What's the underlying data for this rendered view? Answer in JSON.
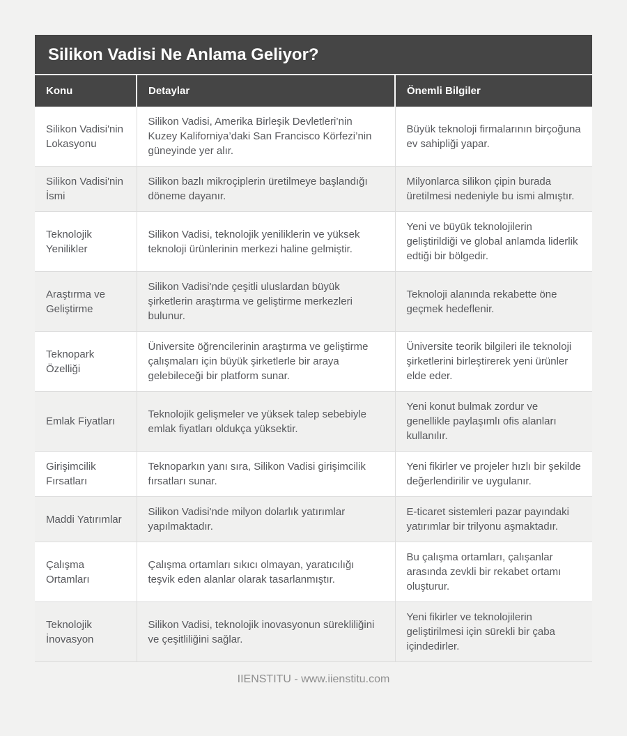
{
  "header": {
    "title": "Silikon Vadisi Ne Anlama Geliyor?"
  },
  "table": {
    "columns": [
      "Konu",
      "Detaylar",
      "Önemli Bilgiler"
    ],
    "rows": [
      {
        "konu": "Silikon Vadisi'nin Lokasyonu",
        "detaylar": "Silikon Vadisi, Amerika Birleşik Devletleri’nin Kuzey Kaliforniya’daki San Francisco Körfezi’nin güneyinde yer alır.",
        "onemli": "Büyük teknoloji firmalarının birçoğuna ev sahipliği yapar."
      },
      {
        "konu": "Silikon Vadisi'nin İsmi",
        "detaylar": "Silikon bazlı mikroçiplerin üretilmeye başlandığı döneme dayanır.",
        "onemli": "Milyonlarca silikon çipin burada üretilmesi nedeniyle bu ismi almıştır."
      },
      {
        "konu": "Teknolojik Yenilikler",
        "detaylar": "Silikon Vadisi, teknolojik yeniliklerin ve yüksek teknoloji ürünlerinin merkezi haline gelmiştir.",
        "onemli": "Yeni ve büyük teknolojilerin geliştirildiği ve global anlamda liderlik edtiği bir bölgedir."
      },
      {
        "konu": "Araştırma ve Geliştirme",
        "detaylar": "Silikon Vadisi'nde çeşitli uluslardan büyük şirketlerin araştırma ve geliştirme merkezleri bulunur.",
        "onemli": "Teknoloji alanında rekabette öne geçmek hedeflenir."
      },
      {
        "konu": "Teknopark Özelliği",
        "detaylar": "Üniversite öğrencilerinin araştırma ve geliştirme çalışmaları için büyük şirketlerle bir araya gelebileceği bir platform sunar.",
        "onemli": "Üniversite teorik bilgileri ile teknoloji şirketlerini birleştirerek yeni ürünler elde eder."
      },
      {
        "konu": "Emlak Fiyatları",
        "detaylar": "Teknolojik gelişmeler ve yüksek talep sebebiyle emlak fiyatları oldukça yüksektir.",
        "onemli": "Yeni konut bulmak zordur ve genellikle paylaşımlı ofis alanları kullanılır."
      },
      {
        "konu": "Girişimcilik Fırsatları",
        "detaylar": "Teknoparkın yanı sıra, Silikon Vadisi girişimcilik fırsatları sunar.",
        "onemli": "Yeni fikirler ve projeler hızlı bir şekilde değerlendirilir ve uygulanır."
      },
      {
        "konu": "Maddi Yatırımlar",
        "detaylar": "Silikon Vadisi'nde milyon dolarlık yatırımlar yapılmaktadır.",
        "onemli": "E-ticaret sistemleri pazar payındaki yatırımlar bir trilyonu aşmaktadır."
      },
      {
        "konu": "Çalışma Ortamları",
        "detaylar": "Çalışma ortamları sıkıcı olmayan, yaratıcılığı teşvik eden alanlar olarak tasarlanmıştır.",
        "onemli": "Bu çalışma ortamları, çalışanlar arasında zevkli bir rekabet ortamı oluşturur."
      },
      {
        "konu": "Teknolojik İnovasyon",
        "detaylar": "Silikon Vadisi, teknolojik inovasyonun sürekliliğini ve çeşitliliğini sağlar.",
        "onemli": "Yeni fikirler ve teknolojilerin geliştirilmesi için sürekli bir çaba içindedirler."
      }
    ]
  },
  "footer": {
    "text": "IIENSTITU - www.iienstitu.com"
  },
  "colors": {
    "header_bg": "#454545",
    "page_bg": "#f2f2f1",
    "row_alt": "#f0f0ef",
    "text": "#57585c",
    "border": "#dcdcdc",
    "footer_text": "#8e8e8e"
  }
}
